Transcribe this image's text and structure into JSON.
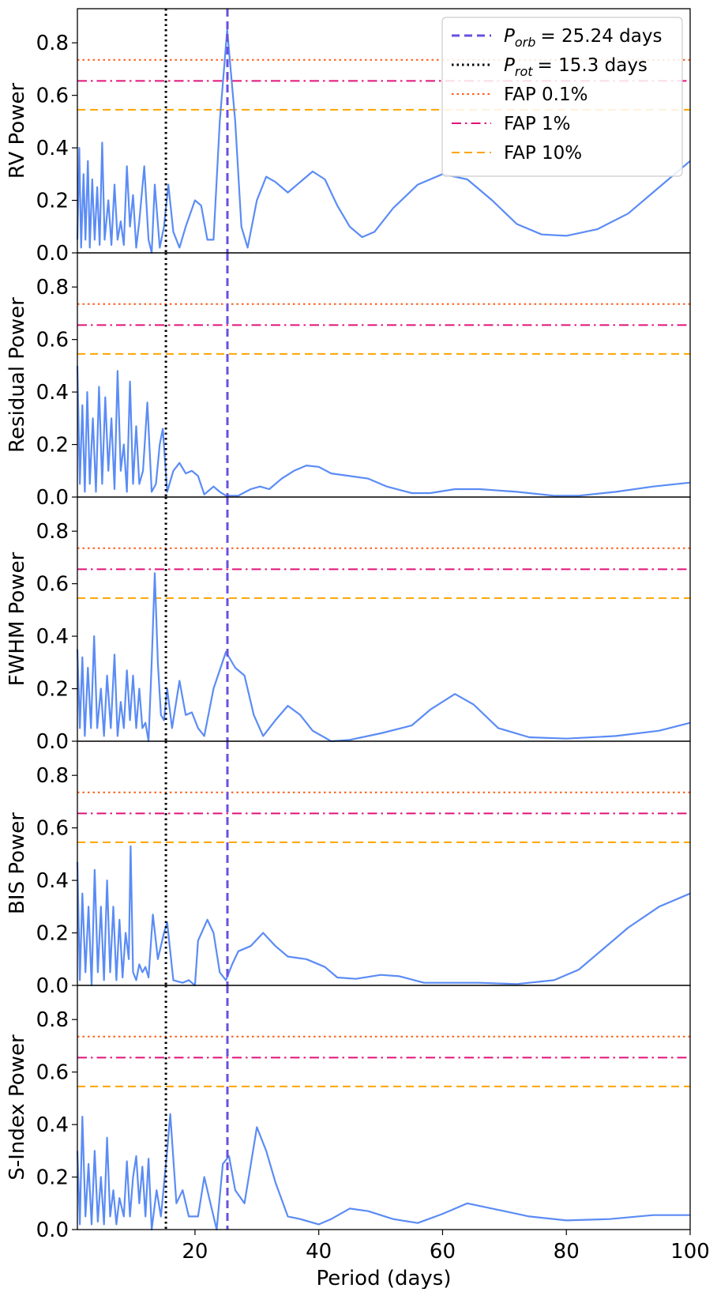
{
  "chart_data": [
    {
      "type": "line",
      "ylabel": "RV Power",
      "color": "#5b8cf5",
      "x": [
        1,
        1.3,
        1.6,
        2,
        2.3,
        2.7,
        3,
        3.4,
        3.8,
        4.2,
        4.6,
        5,
        5.4,
        6,
        6.5,
        7,
        7.5,
        8,
        8.5,
        9,
        9.5,
        10,
        10.5,
        11,
        11.8,
        12.5,
        13,
        13.5,
        14.3,
        15,
        15.7,
        16.5,
        17.5,
        18.5,
        20,
        21,
        22,
        23,
        24,
        25.2,
        26.5,
        27.5,
        28.5,
        30,
        31.5,
        33,
        35,
        37,
        39,
        41,
        43,
        45,
        47,
        49,
        52,
        56,
        60,
        64,
        68,
        72,
        76,
        80,
        85,
        90,
        95,
        100
      ],
      "values": [
        0.05,
        0.4,
        0.02,
        0.3,
        0.05,
        0.35,
        0.02,
        0.28,
        0.05,
        0.25,
        0.03,
        0.42,
        0.05,
        0.2,
        0.03,
        0.26,
        0.05,
        0.12,
        0.03,
        0.33,
        0.1,
        0.22,
        0.02,
        0.12,
        0.33,
        0.05,
        0.0,
        0.26,
        0.02,
        0.1,
        0.26,
        0.08,
        0.02,
        0.1,
        0.2,
        0.18,
        0.05,
        0.05,
        0.5,
        0.85,
        0.5,
        0.1,
        0.02,
        0.2,
        0.29,
        0.27,
        0.23,
        0.27,
        0.31,
        0.28,
        0.18,
        0.1,
        0.06,
        0.08,
        0.17,
        0.26,
        0.3,
        0.28,
        0.2,
        0.11,
        0.07,
        0.065,
        0.09,
        0.15,
        0.25,
        0.35
      ],
      "ylim": [
        0,
        0.93
      ],
      "yticks": [
        {
          "value": 0,
          "label": "0.0"
        },
        0.2,
        0.4,
        0.6,
        0.8
      ],
      "xlim": [
        1,
        100
      ],
      "xticks": [
        20,
        40,
        60,
        80,
        100
      ],
      "xlabel": "Period (days)",
      "legend": "upper right",
      "vlines": [
        {
          "symbol": "P",
          "sub": "orb",
          "label": "= 25.24 days",
          "x": 25.24,
          "color": "#6a4fe0",
          "style": "dashed"
        },
        {
          "symbol": "P",
          "sub": "rot",
          "label": "= 15.3 days",
          "x": 15.3,
          "color": "#000000",
          "style": "dotted"
        }
      ],
      "hlines": [
        {
          "label": "FAP 0.1%",
          "y": 0.735,
          "color": "#ff5a14",
          "style": "dotted"
        },
        {
          "label": "FAP 1%",
          "y": 0.655,
          "color": "#e0137a",
          "style": "dashdot"
        },
        {
          "label": "FAP 10%",
          "y": 0.545,
          "color": "#ffa500",
          "style": "dashed"
        }
      ]
    },
    {
      "type": "line",
      "ylabel": "Residual Power",
      "color": "#5b8cf5",
      "x": [
        1,
        1.4,
        1.8,
        2.2,
        2.6,
        3,
        3.5,
        4,
        4.5,
        5,
        5.5,
        6,
        6.5,
        7,
        7.5,
        8,
        8.5,
        9,
        9.5,
        10,
        10.5,
        11,
        11.6,
        12.3,
        13,
        13.7,
        14.3,
        14.8,
        15.5,
        16.5,
        17.5,
        18.5,
        19.5,
        20.5,
        21.5,
        23,
        24,
        25,
        27,
        29,
        30.5,
        32,
        34,
        36,
        38,
        40,
        42,
        45,
        48,
        51,
        55,
        58,
        62,
        66,
        72,
        78,
        82,
        88,
        94,
        100
      ],
      "values": [
        0.5,
        0.05,
        0.35,
        0.02,
        0.4,
        0.05,
        0.3,
        0.02,
        0.42,
        0.05,
        0.38,
        0.1,
        0.3,
        0.03,
        0.48,
        0.1,
        0.2,
        0.02,
        0.44,
        0.05,
        0.27,
        0.05,
        0.1,
        0.36,
        0.02,
        0.05,
        0.2,
        0.26,
        0.02,
        0.1,
        0.13,
        0.09,
        0.1,
        0.08,
        0.01,
        0.04,
        0.02,
        0.005,
        0.005,
        0.03,
        0.04,
        0.03,
        0.07,
        0.1,
        0.12,
        0.115,
        0.09,
        0.08,
        0.07,
        0.04,
        0.015,
        0.015,
        0.03,
        0.03,
        0.02,
        0.005,
        0.005,
        0.02,
        0.04,
        0.055
      ]
    },
    {
      "type": "line",
      "ylabel": "FWHM Power",
      "color": "#5b8cf5",
      "x": [
        1,
        1.4,
        1.8,
        2.2,
        2.7,
        3.2,
        3.7,
        4.2,
        4.8,
        5.3,
        5.8,
        6.4,
        7,
        7.5,
        8,
        8.5,
        9,
        9.5,
        10,
        10.5,
        11,
        11.5,
        12,
        12.5,
        13,
        13.5,
        14,
        14.5,
        15,
        15.5,
        16.3,
        17.5,
        18.5,
        19.5,
        20.5,
        21.5,
        23,
        25,
        26.5,
        28,
        29.5,
        31,
        33,
        35,
        37,
        39,
        42,
        45,
        50,
        55,
        58,
        62,
        65,
        69,
        74,
        80,
        88,
        95,
        100
      ],
      "values": [
        0.35,
        0.05,
        0.32,
        0.02,
        0.28,
        0.05,
        0.4,
        0.05,
        0.2,
        0.02,
        0.25,
        0.05,
        0.33,
        0.02,
        0.15,
        0.05,
        0.27,
        0.08,
        0.25,
        0.05,
        0.2,
        0.05,
        0.07,
        0.0,
        0.3,
        0.64,
        0.3,
        0.1,
        0.08,
        0.2,
        0.05,
        0.23,
        0.1,
        0.11,
        0.05,
        0.02,
        0.2,
        0.34,
        0.28,
        0.25,
        0.1,
        0.02,
        0.08,
        0.135,
        0.1,
        0.04,
        0.0,
        0.005,
        0.03,
        0.06,
        0.12,
        0.18,
        0.14,
        0.05,
        0.015,
        0.01,
        0.02,
        0.04,
        0.07
      ]
    },
    {
      "type": "line",
      "ylabel": "BIS Power",
      "color": "#5b8cf5",
      "x": [
        1,
        1.4,
        1.8,
        2.3,
        2.8,
        3.3,
        3.8,
        4.3,
        4.8,
        5.3,
        5.8,
        6.3,
        6.8,
        7.3,
        7.8,
        8.3,
        8.8,
        9.3,
        9.6,
        10,
        10.5,
        11,
        11.5,
        12,
        12.5,
        13.2,
        14,
        15,
        15.5,
        16.5,
        18,
        19,
        20,
        20.5,
        22,
        23,
        24,
        25,
        26,
        27,
        29,
        31,
        33,
        35,
        38,
        41,
        43,
        46,
        50,
        53,
        57,
        62,
        66,
        72,
        78,
        82,
        86,
        90,
        95,
        100
      ],
      "values": [
        0.47,
        0.02,
        0.35,
        0.05,
        0.3,
        0.0,
        0.44,
        0.05,
        0.3,
        0.02,
        0.4,
        0.05,
        0.3,
        0.02,
        0.25,
        0.03,
        0.2,
        0.1,
        0.53,
        0.05,
        0.02,
        0.08,
        0.05,
        0.07,
        0.03,
        0.27,
        0.1,
        0.2,
        0.24,
        0.02,
        0.01,
        0.02,
        0.0,
        0.17,
        0.25,
        0.2,
        0.05,
        0.02,
        0.08,
        0.13,
        0.15,
        0.2,
        0.15,
        0.11,
        0.1,
        0.07,
        0.03,
        0.025,
        0.04,
        0.035,
        0.01,
        0.01,
        0.01,
        0.005,
        0.02,
        0.06,
        0.14,
        0.22,
        0.3,
        0.35
      ]
    },
    {
      "type": "line",
      "ylabel": "S-Index Power",
      "color": "#5b8cf5",
      "x": [
        1,
        1.4,
        1.8,
        2.3,
        2.8,
        3.3,
        3.8,
        4.3,
        4.8,
        5.3,
        5.8,
        6.3,
        6.8,
        7.3,
        7.8,
        8.5,
        9,
        9.5,
        10,
        10.5,
        11,
        11.5,
        12,
        12.5,
        13,
        13.8,
        14.5,
        15.5,
        16,
        17,
        18,
        19,
        20.5,
        21.5,
        22.5,
        23.5,
        24.5,
        25.5,
        26.5,
        28,
        30,
        31.5,
        33,
        35,
        37,
        40,
        42,
        45,
        48,
        52,
        56,
        60,
        64,
        68,
        74,
        80,
        87,
        94,
        100
      ],
      "values": [
        0.3,
        0.02,
        0.43,
        0.05,
        0.25,
        0.02,
        0.3,
        0.03,
        0.2,
        0.02,
        0.35,
        0.05,
        0.15,
        0.02,
        0.12,
        0.05,
        0.26,
        0.05,
        0.2,
        0.28,
        0.1,
        0.24,
        0.05,
        0.27,
        0.0,
        0.15,
        0.05,
        0.3,
        0.44,
        0.1,
        0.15,
        0.05,
        0.05,
        0.2,
        0.1,
        0.0,
        0.25,
        0.28,
        0.15,
        0.1,
        0.39,
        0.3,
        0.18,
        0.05,
        0.04,
        0.02,
        0.04,
        0.08,
        0.07,
        0.04,
        0.025,
        0.06,
        0.1,
        0.08,
        0.05,
        0.035,
        0.04,
        0.055,
        0.055
      ]
    }
  ]
}
